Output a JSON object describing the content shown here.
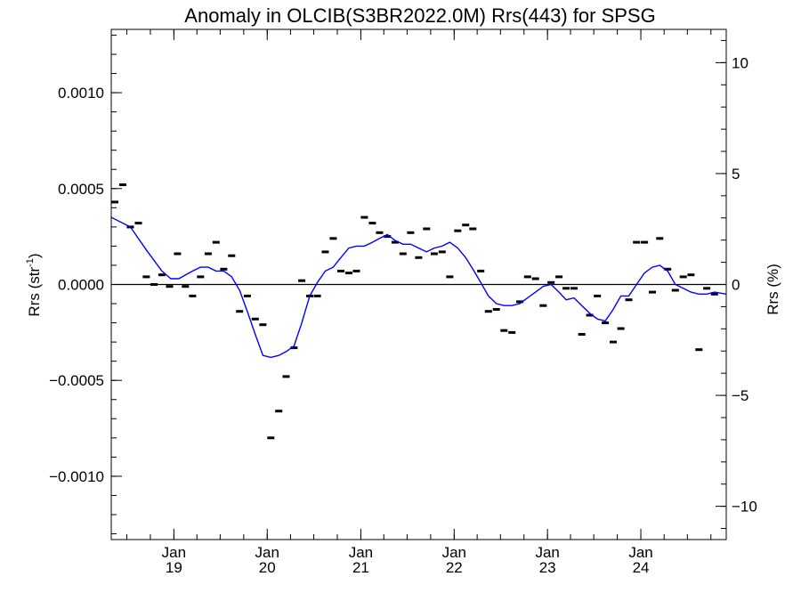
{
  "chart_data": {
    "type": "scatter",
    "title": "Anomaly in OLCIB(S3BR2022.0M) Rrs(443) for SPSG",
    "ylabel_left": "Rrs (str",
    "ylabel_left_sup": "-1",
    "ylabel_left_close": ")",
    "ylabel_right": "Rrs (%)",
    "x_range": [
      "2018-05-01",
      "2024-11-30"
    ],
    "ylim_left": [
      -0.00133,
      0.00133
    ],
    "ylim_right": [
      -11.5,
      11.5
    ],
    "yticks_left": [
      {
        "value": 0.001,
        "label": "0.0010"
      },
      {
        "value": 0.0005,
        "label": "0.0005"
      },
      {
        "value": 0.0,
        "label": "0.0000"
      },
      {
        "value": -0.0005,
        "label": "−0.0005"
      },
      {
        "value": -0.001,
        "label": "−0.0010"
      }
    ],
    "yticks_right": [
      {
        "value": 10,
        "label": "10"
      },
      {
        "value": 5,
        "label": "5"
      },
      {
        "value": 0,
        "label": "0"
      },
      {
        "value": -5,
        "label": "−5"
      },
      {
        "value": -10,
        "label": "−10"
      }
    ],
    "xticks": [
      {
        "date": "2019-01-01",
        "month": "Jan",
        "year": "19"
      },
      {
        "date": "2020-01-01",
        "month": "Jan",
        "year": "20"
      },
      {
        "date": "2021-01-01",
        "month": "Jan",
        "year": "21"
      },
      {
        "date": "2022-01-01",
        "month": "Jan",
        "year": "22"
      },
      {
        "date": "2023-01-01",
        "month": "Jan",
        "year": "23"
      },
      {
        "date": "2024-01-01",
        "month": "Jan",
        "year": "24"
      }
    ],
    "zero_line": true,
    "series": [
      {
        "kind": "points",
        "color": "#000000",
        "points": [
          {
            "x": "2018-05-15",
            "y": 0.00043
          },
          {
            "x": "2018-06-15",
            "y": 0.00052
          },
          {
            "x": "2018-07-15",
            "y": 0.0003
          },
          {
            "x": "2018-08-15",
            "y": 0.00032
          },
          {
            "x": "2018-09-15",
            "y": 4e-05
          },
          {
            "x": "2018-10-15",
            "y": 0.0
          },
          {
            "x": "2018-11-15",
            "y": 5e-05
          },
          {
            "x": "2018-12-15",
            "y": -1e-05
          },
          {
            "x": "2019-01-15",
            "y": 0.00016
          },
          {
            "x": "2019-02-15",
            "y": -1e-05
          },
          {
            "x": "2019-03-15",
            "y": -6e-05
          },
          {
            "x": "2019-04-15",
            "y": 4e-05
          },
          {
            "x": "2019-05-15",
            "y": 0.00016
          },
          {
            "x": "2019-06-15",
            "y": 0.00022
          },
          {
            "x": "2019-07-15",
            "y": 8e-05
          },
          {
            "x": "2019-08-15",
            "y": 0.00015
          },
          {
            "x": "2019-09-15",
            "y": -0.00014
          },
          {
            "x": "2019-10-15",
            "y": -6e-05
          },
          {
            "x": "2019-11-15",
            "y": -0.00018
          },
          {
            "x": "2019-12-15",
            "y": -0.00021
          },
          {
            "x": "2020-01-15",
            "y": -0.0008
          },
          {
            "x": "2020-02-15",
            "y": -0.00066
          },
          {
            "x": "2020-03-15",
            "y": -0.00048
          },
          {
            "x": "2020-04-15",
            "y": -0.00033
          },
          {
            "x": "2020-05-15",
            "y": 2e-05
          },
          {
            "x": "2020-06-15",
            "y": -6e-05
          },
          {
            "x": "2020-07-15",
            "y": -6e-05
          },
          {
            "x": "2020-08-15",
            "y": 0.00017
          },
          {
            "x": "2020-09-15",
            "y": 0.00024
          },
          {
            "x": "2020-10-15",
            "y": 7e-05
          },
          {
            "x": "2020-11-15",
            "y": 6e-05
          },
          {
            "x": "2020-12-15",
            "y": 7e-05
          },
          {
            "x": "2021-01-15",
            "y": 0.00035
          },
          {
            "x": "2021-02-15",
            "y": 0.00032
          },
          {
            "x": "2021-03-15",
            "y": 0.00027
          },
          {
            "x": "2021-04-15",
            "y": 0.00025
          },
          {
            "x": "2021-05-15",
            "y": 0.00022
          },
          {
            "x": "2021-06-15",
            "y": 0.00016
          },
          {
            "x": "2021-07-15",
            "y": 0.00027
          },
          {
            "x": "2021-08-15",
            "y": 0.00014
          },
          {
            "x": "2021-09-15",
            "y": 0.00029
          },
          {
            "x": "2021-10-15",
            "y": 0.00016
          },
          {
            "x": "2021-11-15",
            "y": 0.00017
          },
          {
            "x": "2021-12-15",
            "y": 4e-05
          },
          {
            "x": "2022-01-15",
            "y": 0.00028
          },
          {
            "x": "2022-02-15",
            "y": 0.00031
          },
          {
            "x": "2022-03-15",
            "y": 0.00029
          },
          {
            "x": "2022-04-15",
            "y": 7e-05
          },
          {
            "x": "2022-05-15",
            "y": -0.00014
          },
          {
            "x": "2022-06-15",
            "y": -0.00013
          },
          {
            "x": "2022-07-15",
            "y": -0.00024
          },
          {
            "x": "2022-08-15",
            "y": -0.00025
          },
          {
            "x": "2022-09-15",
            "y": -9e-05
          },
          {
            "x": "2022-10-15",
            "y": 4e-05
          },
          {
            "x": "2022-11-15",
            "y": 3e-05
          },
          {
            "x": "2022-12-15",
            "y": -0.00011
          },
          {
            "x": "2023-01-15",
            "y": 1e-05
          },
          {
            "x": "2023-02-15",
            "y": 4e-05
          },
          {
            "x": "2023-03-15",
            "y": -2e-05
          },
          {
            "x": "2023-04-15",
            "y": -2e-05
          },
          {
            "x": "2023-05-15",
            "y": -0.00026
          },
          {
            "x": "2023-06-15",
            "y": -0.00016
          },
          {
            "x": "2023-07-15",
            "y": -6e-05
          },
          {
            "x": "2023-08-15",
            "y": -0.0002
          },
          {
            "x": "2023-09-15",
            "y": -0.0003
          },
          {
            "x": "2023-10-15",
            "y": -0.00023
          },
          {
            "x": "2023-11-15",
            "y": -8e-05
          },
          {
            "x": "2023-12-15",
            "y": 0.00022
          },
          {
            "x": "2024-01-15",
            "y": 0.00022
          },
          {
            "x": "2024-02-15",
            "y": -4e-05
          },
          {
            "x": "2024-03-15",
            "y": 0.00024
          },
          {
            "x": "2024-04-15",
            "y": 8e-05
          },
          {
            "x": "2024-05-15",
            "y": -3e-05
          },
          {
            "x": "2024-06-15",
            "y": 4e-05
          },
          {
            "x": "2024-07-15",
            "y": 5e-05
          },
          {
            "x": "2024-08-15",
            "y": -0.00034
          },
          {
            "x": "2024-09-15",
            "y": -2e-05
          },
          {
            "x": "2024-10-15",
            "y": -5e-05
          }
        ]
      },
      {
        "kind": "line",
        "color": "#0000ff",
        "points": [
          {
            "x": "2018-05-01",
            "y": 0.00035
          },
          {
            "x": "2018-07-15",
            "y": 0.0003
          },
          {
            "x": "2018-09-15",
            "y": 0.00018
          },
          {
            "x": "2018-11-15",
            "y": 7e-05
          },
          {
            "x": "2018-12-20",
            "y": 3e-05
          },
          {
            "x": "2019-01-20",
            "y": 3e-05
          },
          {
            "x": "2019-03-15",
            "y": 7e-05
          },
          {
            "x": "2019-04-15",
            "y": 9e-05
          },
          {
            "x": "2019-05-15",
            "y": 9e-05
          },
          {
            "x": "2019-06-15",
            "y": 7e-05
          },
          {
            "x": "2019-07-15",
            "y": 7e-05
          },
          {
            "x": "2019-08-15",
            "y": 4e-05
          },
          {
            "x": "2019-09-15",
            "y": -3e-05
          },
          {
            "x": "2019-10-15",
            "y": -0.00014
          },
          {
            "x": "2019-11-15",
            "y": -0.00026
          },
          {
            "x": "2019-12-15",
            "y": -0.00037
          },
          {
            "x": "2020-01-15",
            "y": -0.00038
          },
          {
            "x": "2020-02-15",
            "y": -0.00037
          },
          {
            "x": "2020-03-15",
            "y": -0.00035
          },
          {
            "x": "2020-04-15",
            "y": -0.00032
          },
          {
            "x": "2020-05-15",
            "y": -0.0002
          },
          {
            "x": "2020-06-15",
            "y": -6e-05
          },
          {
            "x": "2020-07-15",
            "y": 1e-05
          },
          {
            "x": "2020-08-15",
            "y": 7e-05
          },
          {
            "x": "2020-09-15",
            "y": 9e-05
          },
          {
            "x": "2020-10-15",
            "y": 0.00014
          },
          {
            "x": "2020-11-15",
            "y": 0.00019
          },
          {
            "x": "2020-12-15",
            "y": 0.0002
          },
          {
            "x": "2021-01-15",
            "y": 0.0002
          },
          {
            "x": "2021-02-15",
            "y": 0.00022
          },
          {
            "x": "2021-03-15",
            "y": 0.00024
          },
          {
            "x": "2021-04-15",
            "y": 0.00026
          },
          {
            "x": "2021-05-15",
            "y": 0.00023
          },
          {
            "x": "2021-06-15",
            "y": 0.00021
          },
          {
            "x": "2021-07-15",
            "y": 0.00021
          },
          {
            "x": "2021-08-15",
            "y": 0.00019
          },
          {
            "x": "2021-09-15",
            "y": 0.00017
          },
          {
            "x": "2021-10-15",
            "y": 0.00019
          },
          {
            "x": "2021-11-15",
            "y": 0.0002
          },
          {
            "x": "2021-12-15",
            "y": 0.00022
          },
          {
            "x": "2022-01-15",
            "y": 0.00019
          },
          {
            "x": "2022-02-15",
            "y": 0.00014
          },
          {
            "x": "2022-03-15",
            "y": 8e-05
          },
          {
            "x": "2022-04-15",
            "y": 1e-05
          },
          {
            "x": "2022-05-15",
            "y": -6e-05
          },
          {
            "x": "2022-06-15",
            "y": -0.0001
          },
          {
            "x": "2022-07-15",
            "y": -0.00011
          },
          {
            "x": "2022-08-15",
            "y": -0.00011
          },
          {
            "x": "2022-09-15",
            "y": -0.0001
          },
          {
            "x": "2022-10-15",
            "y": -7e-05
          },
          {
            "x": "2022-11-15",
            "y": -4e-05
          },
          {
            "x": "2022-12-15",
            "y": -1e-05
          },
          {
            "x": "2023-01-15",
            "y": 0.0
          },
          {
            "x": "2023-02-15",
            "y": -4e-05
          },
          {
            "x": "2023-03-15",
            "y": -8e-05
          },
          {
            "x": "2023-04-15",
            "y": -7e-05
          },
          {
            "x": "2023-05-15",
            "y": -0.00011
          },
          {
            "x": "2023-06-15",
            "y": -0.00015
          },
          {
            "x": "2023-07-15",
            "y": -0.00018
          },
          {
            "x": "2023-08-15",
            "y": -0.00019
          },
          {
            "x": "2023-09-15",
            "y": -0.00013
          },
          {
            "x": "2023-10-15",
            "y": -6e-05
          },
          {
            "x": "2023-11-15",
            "y": -6e-05
          },
          {
            "x": "2023-12-15",
            "y": 0.0
          },
          {
            "x": "2024-01-15",
            "y": 6e-05
          },
          {
            "x": "2024-02-15",
            "y": 9e-05
          },
          {
            "x": "2024-03-15",
            "y": 0.0001
          },
          {
            "x": "2024-04-15",
            "y": 7e-05
          },
          {
            "x": "2024-05-15",
            "y": 0.0
          },
          {
            "x": "2024-06-15",
            "y": -2e-05
          },
          {
            "x": "2024-07-15",
            "y": -4e-05
          },
          {
            "x": "2024-08-15",
            "y": -5e-05
          },
          {
            "x": "2024-09-15",
            "y": -5e-05
          },
          {
            "x": "2024-10-15",
            "y": -4e-05
          },
          {
            "x": "2024-11-30",
            "y": -5e-05
          }
        ]
      }
    ]
  }
}
